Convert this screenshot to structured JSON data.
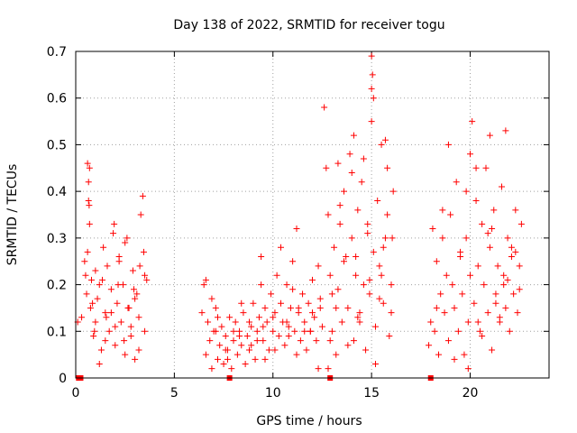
{
  "chart_data": {
    "type": "scatter",
    "title": "Day 138 of 2022, SRMTID for receiver togu",
    "xlabel": "GPS time / hours",
    "ylabel": "SRMTID / TECUs",
    "xlim": [
      0,
      24
    ],
    "ylim": [
      0,
      0.7
    ],
    "xticks": [
      0,
      5,
      10,
      15,
      20
    ],
    "yticks": [
      0,
      0.1,
      0.2,
      0.3,
      0.4,
      0.5,
      0.6,
      0.7
    ],
    "xtick_labels": [
      "0",
      "5",
      "10",
      "15",
      "20"
    ],
    "ytick_labels": [
      "0",
      "0.1",
      "0.2",
      "0.3",
      "0.4",
      "0.5",
      "0.6",
      "0.7"
    ],
    "grid": true,
    "marker": "plus",
    "color": "#ff0000",
    "series": [
      {
        "name": "SRMTID",
        "x": [
          0.1,
          0.3,
          0.45,
          0.5,
          0.55,
          0.6,
          0.65,
          0.7,
          0.75,
          0.8,
          0.9,
          1.0,
          1.1,
          1.2,
          1.3,
          1.4,
          1.5,
          1.6,
          1.7,
          1.8,
          1.9,
          2.0,
          2.1,
          2.2,
          2.3,
          2.4,
          2.5,
          2.6,
          2.7,
          2.8,
          2.9,
          3.0,
          3.1,
          3.2,
          3.3,
          3.4,
          3.5,
          3.6,
          0.7,
          0.65,
          0.68,
          0.6,
          1.0,
          1.5,
          2.0,
          2.5,
          3.0,
          3.5,
          1.2,
          1.8,
          2.2,
          2.8,
          3.2,
          0.85,
          1.35,
          1.95,
          2.45,
          2.95,
          3.45,
          0.95,
          1.55,
          2.15,
          2.65,
          3.25
        ],
        "y": [
          0.12,
          0.13,
          0.25,
          0.22,
          0.18,
          0.46,
          0.38,
          0.33,
          0.15,
          0.21,
          0.09,
          0.12,
          0.17,
          0.2,
          0.06,
          0.28,
          0.14,
          0.24,
          0.1,
          0.19,
          0.31,
          0.07,
          0.16,
          0.26,
          0.12,
          0.2,
          0.05,
          0.3,
          0.15,
          0.09,
          0.23,
          0.04,
          0.18,
          0.13,
          0.35,
          0.39,
          0.1,
          0.21,
          0.45,
          0.42,
          0.37,
          0.27,
          0.23,
          0.08,
          0.11,
          0.29,
          0.17,
          0.22,
          0.03,
          0.14,
          0.25,
          0.11,
          0.06,
          0.16,
          0.21,
          0.33,
          0.08,
          0.19,
          0.27,
          0.1,
          0.13,
          0.2,
          0.15,
          0.24
        ]
      },
      {
        "name": "SRMTID",
        "x": [
          6.4,
          6.5,
          6.6,
          6.7,
          6.8,
          6.9,
          7.0,
          7.1,
          7.2,
          7.3,
          7.4,
          7.5,
          7.6,
          7.7,
          7.8,
          7.9,
          8.0,
          8.1,
          8.2,
          8.3,
          8.4,
          8.5,
          8.6,
          8.7,
          8.8,
          8.9,
          9.0,
          9.1,
          9.2,
          9.3,
          9.4,
          9.5,
          9.6,
          9.7,
          9.8,
          9.9,
          10.0,
          10.1,
          10.2,
          10.3,
          10.4,
          10.5,
          10.6,
          10.7,
          10.8,
          10.9,
          11.0,
          11.1,
          11.2,
          11.3,
          11.4,
          11.5,
          11.6,
          11.7,
          11.8,
          11.9,
          12.0,
          12.1,
          12.2,
          12.3,
          12.4,
          12.5,
          6.6,
          6.9,
          7.2,
          7.6,
          8.0,
          8.4,
          8.8,
          9.2,
          9.4,
          9.6,
          10.0,
          10.4,
          10.8,
          11.0,
          11.2,
          11.6,
          12.0,
          12.3,
          7.1,
          7.7,
          8.3,
          8.9,
          9.5,
          10.1,
          10.7,
          11.3,
          11.9,
          12.4
        ],
        "y": [
          0.14,
          0.2,
          0.05,
          0.12,
          0.08,
          0.02,
          0.1,
          0.15,
          0.04,
          0.07,
          0.11,
          0.03,
          0.09,
          0.06,
          0.13,
          0.02,
          0.08,
          0.12,
          0.05,
          0.1,
          0.07,
          0.14,
          0.03,
          0.09,
          0.06,
          0.11,
          0.16,
          0.04,
          0.1,
          0.13,
          0.2,
          0.08,
          0.15,
          0.12,
          0.06,
          0.18,
          0.1,
          0.14,
          0.22,
          0.09,
          0.16,
          0.12,
          0.07,
          0.2,
          0.11,
          0.15,
          0.25,
          0.1,
          0.32,
          0.14,
          0.08,
          0.18,
          0.12,
          0.06,
          0.16,
          0.1,
          0.21,
          0.13,
          0.08,
          0.24,
          0.15,
          0.11,
          0.21,
          0.17,
          0.13,
          0.06,
          0.1,
          0.16,
          0.12,
          0.08,
          0.26,
          0.04,
          0.13,
          0.28,
          0.09,
          0.19,
          0.05,
          0.1,
          0.14,
          0.02,
          0.1,
          0.04,
          0.09,
          0.07,
          0.11,
          0.06,
          0.12,
          0.15,
          0.1,
          0.17
        ]
      },
      {
        "name": "SRMTID",
        "x": [
          12.6,
          12.7,
          12.8,
          12.9,
          13.0,
          13.1,
          13.2,
          13.3,
          13.4,
          13.5,
          13.6,
          13.7,
          13.8,
          13.9,
          14.0,
          14.1,
          14.2,
          14.3,
          14.4,
          14.5,
          14.6,
          14.7,
          14.8,
          14.9,
          15.0,
          15.1,
          15.2,
          15.3,
          15.4,
          15.5,
          15.6,
          15.7,
          15.8,
          15.9,
          16.0,
          16.1,
          12.8,
          13.2,
          13.6,
          14.0,
          14.4,
          14.8,
          15.0,
          15.2,
          15.6,
          16.0,
          13.0,
          13.4,
          13.8,
          14.2,
          14.6,
          15.0,
          15.4,
          15.8,
          12.9,
          14.1,
          14.9,
          15.05,
          15.1,
          15.7,
          13.3,
          14.3,
          15.5,
          16.05
        ],
        "y": [
          0.58,
          0.45,
          0.35,
          0.22,
          0.1,
          0.28,
          0.05,
          0.19,
          0.33,
          0.12,
          0.4,
          0.26,
          0.15,
          0.48,
          0.3,
          0.08,
          0.22,
          0.36,
          0.14,
          0.42,
          0.2,
          0.06,
          0.31,
          0.18,
          0.55,
          0.27,
          0.11,
          0.38,
          0.24,
          0.5,
          0.16,
          0.3,
          0.45,
          0.09,
          0.2,
          0.4,
          0.02,
          0.15,
          0.25,
          0.44,
          0.12,
          0.33,
          0.62,
          0.03,
          0.28,
          0.14,
          0.18,
          0.37,
          0.07,
          0.26,
          0.47,
          0.69,
          0.17,
          0.35,
          0.08,
          0.52,
          0.21,
          0.65,
          0.6,
          0.51,
          0.46,
          0.13,
          0.22,
          0.3
        ]
      },
      {
        "name": "SRMTID",
        "x": [
          17.9,
          18.0,
          18.1,
          18.2,
          18.3,
          18.4,
          18.5,
          18.6,
          18.7,
          18.8,
          18.9,
          19.0,
          19.1,
          19.2,
          19.3,
          19.4,
          19.5,
          19.6,
          19.7,
          19.8,
          19.9,
          20.0,
          20.1,
          20.2,
          20.3,
          20.4,
          20.5,
          20.6,
          20.7,
          20.8,
          20.9,
          21.0,
          21.1,
          21.2,
          21.3,
          21.4,
          21.5,
          21.6,
          21.7,
          21.8,
          21.9,
          22.0,
          22.1,
          22.2,
          22.3,
          22.4,
          22.5,
          22.6,
          18.3,
          18.9,
          19.5,
          19.9,
          20.0,
          20.4,
          20.9,
          21.3,
          21.7,
          22.1,
          22.5,
          18.6,
          19.2,
          19.8,
          20.6,
          21.0,
          21.5,
          21.9,
          22.3,
          20.3,
          21.1,
          21.8
        ],
        "y": [
          0.07,
          0.12,
          0.32,
          0.1,
          0.25,
          0.05,
          0.18,
          0.3,
          0.14,
          0.22,
          0.08,
          0.35,
          0.2,
          0.15,
          0.42,
          0.1,
          0.26,
          0.18,
          0.05,
          0.3,
          0.12,
          0.22,
          0.55,
          0.16,
          0.38,
          0.24,
          0.1,
          0.33,
          0.2,
          0.45,
          0.14,
          0.28,
          0.06,
          0.36,
          0.18,
          0.24,
          0.12,
          0.41,
          0.2,
          0.15,
          0.3,
          0.1,
          0.26,
          0.18,
          0.36,
          0.14,
          0.24,
          0.33,
          0.15,
          0.5,
          0.27,
          0.02,
          0.48,
          0.12,
          0.31,
          0.16,
          0.22,
          0.28,
          0.19,
          0.36,
          0.04,
          0.4,
          0.09,
          0.52,
          0.13,
          0.21,
          0.27,
          0.45,
          0.32,
          0.53
        ]
      },
      {
        "name": "SRMTID",
        "x": [
          0.15,
          0.2,
          0.25,
          7.8,
          12.9,
          18.0
        ],
        "y": [
          0.0,
          0.0,
          0.0,
          0.0,
          0.0,
          0.0
        ],
        "marker": "square"
      }
    ]
  }
}
